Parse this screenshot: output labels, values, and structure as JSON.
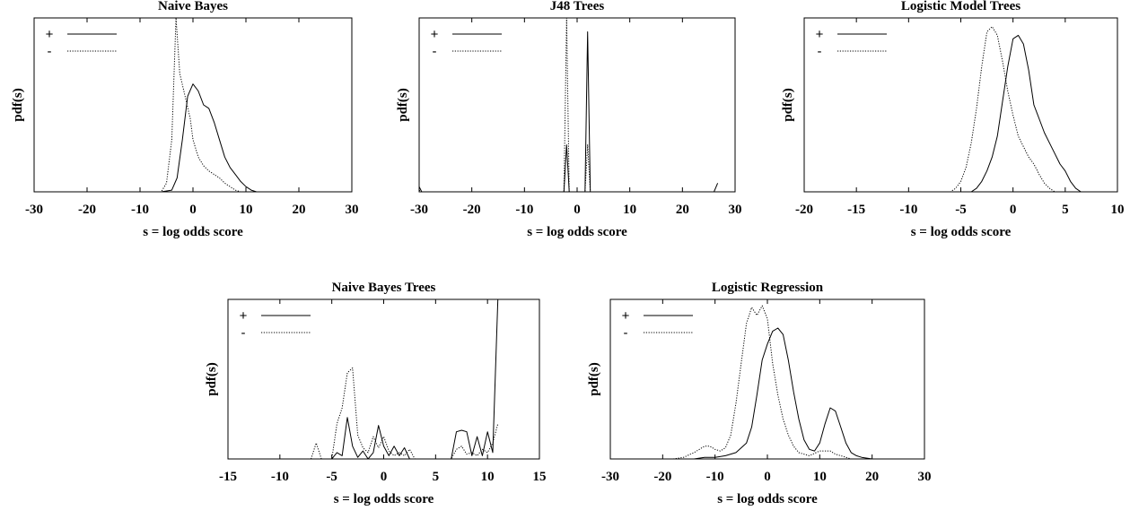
{
  "chart_data": [
    {
      "type": "line",
      "title": "Naive Bayes",
      "xlabel": "s = log odds score",
      "ylabel": "pdf(s)",
      "xlim": [
        -30,
        30
      ],
      "ylim": [
        0,
        1
      ],
      "xticks": [
        -30,
        -20,
        -10,
        0,
        10,
        20,
        30
      ],
      "legend_position": "top-left",
      "series": [
        {
          "name": "+",
          "style": "solid",
          "points": [
            [
              -30,
              0
            ],
            [
              -6,
              0
            ],
            [
              -4,
              0.01
            ],
            [
              -3,
              0.08
            ],
            [
              -2,
              0.3
            ],
            [
              -1,
              0.55
            ],
            [
              0,
              0.62
            ],
            [
              1,
              0.58
            ],
            [
              2,
              0.5
            ],
            [
              3,
              0.48
            ],
            [
              4,
              0.4
            ],
            [
              5,
              0.3
            ],
            [
              6,
              0.2
            ],
            [
              7,
              0.14
            ],
            [
              8,
              0.1
            ],
            [
              9,
              0.06
            ],
            [
              10,
              0.03
            ],
            [
              11,
              0.01
            ],
            [
              12,
              0
            ],
            [
              30,
              0
            ]
          ]
        },
        {
          "name": "-",
          "style": "dotted",
          "points": [
            [
              -30,
              0
            ],
            [
              -6,
              0
            ],
            [
              -5,
              0.05
            ],
            [
              -4,
              0.3
            ],
            [
              -3.2,
              1.0
            ],
            [
              -2.5,
              0.68
            ],
            [
              -1.5,
              0.55
            ],
            [
              -0.5,
              0.42
            ],
            [
              0,
              0.3
            ],
            [
              1,
              0.2
            ],
            [
              2,
              0.15
            ],
            [
              3,
              0.12
            ],
            [
              4,
              0.1
            ],
            [
              5,
              0.08
            ],
            [
              6,
              0.05
            ],
            [
              7,
              0.03
            ],
            [
              8,
              0.01
            ],
            [
              9,
              0
            ],
            [
              30,
              0
            ]
          ]
        }
      ]
    },
    {
      "type": "line",
      "title": "J48 Trees",
      "xlabel": "s = log odds score",
      "ylabel": "pdf(s)",
      "xlim": [
        -30,
        30
      ],
      "ylim": [
        0,
        1
      ],
      "xticks": [
        -30,
        -20,
        -10,
        0,
        10,
        20,
        30
      ],
      "legend_position": "top-left",
      "series": [
        {
          "name": "+",
          "style": "solid",
          "points": [
            [
              -30,
              0.03
            ],
            [
              -29.5,
              0
            ],
            [
              -2.5,
              0
            ],
            [
              -2,
              0.27
            ],
            [
              -1.5,
              0
            ],
            [
              1.5,
              0
            ],
            [
              2,
              0.92
            ],
            [
              2.5,
              0
            ],
            [
              26,
              0
            ],
            [
              26.7,
              0.05
            ]
          ]
        },
        {
          "name": "-",
          "style": "dotted",
          "points": [
            [
              -30,
              0.01
            ],
            [
              -29.5,
              0
            ],
            [
              -2.5,
              0
            ],
            [
              -2,
              1.0
            ],
            [
              -1.5,
              0
            ],
            [
              1.5,
              0
            ],
            [
              2,
              0.27
            ],
            [
              2.5,
              0
            ],
            [
              30,
              0
            ]
          ]
        }
      ]
    },
    {
      "type": "line",
      "title": "Logistic Model Trees",
      "xlabel": "s = log odds score",
      "ylabel": "pdf(s)",
      "xlim": [
        -20,
        10
      ],
      "ylim": [
        0,
        1
      ],
      "xticks": [
        -20,
        -15,
        -10,
        -5,
        0,
        5,
        10
      ],
      "legend_position": "top-left",
      "series": [
        {
          "name": "+",
          "style": "solid",
          "points": [
            [
              -20,
              0
            ],
            [
              -4,
              0
            ],
            [
              -3.5,
              0.02
            ],
            [
              -3,
              0.06
            ],
            [
              -2.5,
              0.12
            ],
            [
              -2,
              0.2
            ],
            [
              -1.5,
              0.32
            ],
            [
              -1,
              0.52
            ],
            [
              -0.5,
              0.72
            ],
            [
              0,
              0.88
            ],
            [
              0.5,
              0.9
            ],
            [
              1,
              0.85
            ],
            [
              1.5,
              0.7
            ],
            [
              2,
              0.5
            ],
            [
              2.5,
              0.42
            ],
            [
              3,
              0.34
            ],
            [
              3.5,
              0.28
            ],
            [
              4,
              0.22
            ],
            [
              4.5,
              0.16
            ],
            [
              5,
              0.12
            ],
            [
              5.5,
              0.06
            ],
            [
              6,
              0.02
            ],
            [
              6.5,
              0
            ],
            [
              10,
              0
            ]
          ]
        },
        {
          "name": "-",
          "style": "dotted",
          "points": [
            [
              -20,
              0
            ],
            [
              -6,
              0
            ],
            [
              -5.5,
              0.02
            ],
            [
              -5,
              0.06
            ],
            [
              -4.5,
              0.14
            ],
            [
              -4,
              0.28
            ],
            [
              -3.5,
              0.48
            ],
            [
              -3,
              0.72
            ],
            [
              -2.5,
              0.92
            ],
            [
              -2,
              0.95
            ],
            [
              -1.5,
              0.9
            ],
            [
              -1,
              0.75
            ],
            [
              -0.5,
              0.58
            ],
            [
              0,
              0.44
            ],
            [
              0.5,
              0.32
            ],
            [
              1,
              0.26
            ],
            [
              1.5,
              0.2
            ],
            [
              2,
              0.16
            ],
            [
              2.5,
              0.1
            ],
            [
              3,
              0.05
            ],
            [
              3.5,
              0.02
            ],
            [
              4,
              0
            ],
            [
              10,
              0
            ]
          ]
        }
      ]
    },
    {
      "type": "line",
      "title": "Naive Bayes Trees",
      "xlabel": "s = log odds score",
      "ylabel": "pdf(s)",
      "xlim": [
        -15,
        15
      ],
      "ylim": [
        0,
        1
      ],
      "xticks": [
        -15,
        -10,
        -5,
        0,
        5,
        10,
        15
      ],
      "legend_position": "top-left",
      "series": [
        {
          "name": "+",
          "style": "solid",
          "points": [
            [
              -15,
              0
            ],
            [
              -5,
              0
            ],
            [
              -4.5,
              0.04
            ],
            [
              -4,
              0.02
            ],
            [
              -3.5,
              0.26
            ],
            [
              -3,
              0.08
            ],
            [
              -2.5,
              0.01
            ],
            [
              -2,
              0.05
            ],
            [
              -1.5,
              0.0
            ],
            [
              -1,
              0.04
            ],
            [
              -0.5,
              0.21
            ],
            [
              0,
              0.08
            ],
            [
              0.5,
              0.02
            ],
            [
              1,
              0.08
            ],
            [
              1.5,
              0.02
            ],
            [
              2,
              0.07
            ],
            [
              2.5,
              0
            ],
            [
              6.5,
              0
            ],
            [
              7,
              0.17
            ],
            [
              7.5,
              0.18
            ],
            [
              8,
              0.17
            ],
            [
              8.5,
              0.02
            ],
            [
              9,
              0.14
            ],
            [
              9.5,
              0.02
            ],
            [
              10,
              0.17
            ],
            [
              10.5,
              0.04
            ],
            [
              11,
              1.0
            ]
          ]
        },
        {
          "name": "-",
          "style": "dotted",
          "points": [
            [
              -15,
              0
            ],
            [
              -7,
              0
            ],
            [
              -6.5,
              0.1
            ],
            [
              -6,
              0
            ],
            [
              -5,
              0
            ],
            [
              -4.5,
              0.22
            ],
            [
              -4,
              0.32
            ],
            [
              -3.5,
              0.54
            ],
            [
              -3,
              0.57
            ],
            [
              -2.5,
              0.15
            ],
            [
              -2,
              0.07
            ],
            [
              -1.5,
              0.04
            ],
            [
              -1,
              0.14
            ],
            [
              -0.5,
              0.07
            ],
            [
              0,
              0.14
            ],
            [
              0.5,
              0.05
            ],
            [
              1,
              0.02
            ],
            [
              1.5,
              0.04
            ],
            [
              2,
              0.02
            ],
            [
              2.5,
              0.06
            ],
            [
              3,
              0
            ],
            [
              6.5,
              0
            ],
            [
              7,
              0.06
            ],
            [
              7.5,
              0.08
            ],
            [
              8,
              0.03
            ],
            [
              8.5,
              0.04
            ],
            [
              9,
              0.02
            ],
            [
              9.5,
              0.06
            ],
            [
              10,
              0.04
            ],
            [
              10.5,
              0.1
            ],
            [
              11,
              0.22
            ]
          ]
        }
      ]
    },
    {
      "type": "line",
      "title": "Logistic Regression",
      "xlabel": "s = log odds score",
      "ylabel": "pdf(s)",
      "xlim": [
        -30,
        30
      ],
      "ylim": [
        0,
        1
      ],
      "xticks": [
        -30,
        -20,
        -10,
        0,
        10,
        20,
        30
      ],
      "legend_position": "top-left",
      "series": [
        {
          "name": "+",
          "style": "solid",
          "points": [
            [
              -30,
              0
            ],
            [
              -14,
              0
            ],
            [
              -12,
              0.01
            ],
            [
              -10,
              0.01
            ],
            [
              -8,
              0.02
            ],
            [
              -6,
              0.04
            ],
            [
              -4,
              0.1
            ],
            [
              -3,
              0.2
            ],
            [
              -2,
              0.4
            ],
            [
              -1,
              0.62
            ],
            [
              0,
              0.72
            ],
            [
              1,
              0.8
            ],
            [
              2,
              0.82
            ],
            [
              3,
              0.78
            ],
            [
              4,
              0.62
            ],
            [
              5,
              0.42
            ],
            [
              6,
              0.25
            ],
            [
              7,
              0.12
            ],
            [
              8,
              0.06
            ],
            [
              9,
              0.05
            ],
            [
              10,
              0.1
            ],
            [
              11,
              0.22
            ],
            [
              12,
              0.32
            ],
            [
              13,
              0.3
            ],
            [
              14,
              0.2
            ],
            [
              15,
              0.1
            ],
            [
              16,
              0.04
            ],
            [
              17,
              0.02
            ],
            [
              18,
              0.01
            ],
            [
              20,
              0
            ],
            [
              30,
              0
            ]
          ]
        },
        {
          "name": "-",
          "style": "dotted",
          "points": [
            [
              -30,
              0
            ],
            [
              -18,
              0
            ],
            [
              -16,
              0.01
            ],
            [
              -14,
              0.04
            ],
            [
              -12,
              0.08
            ],
            [
              -11,
              0.08
            ],
            [
              -10,
              0.06
            ],
            [
              -9,
              0.05
            ],
            [
              -8,
              0.07
            ],
            [
              -7,
              0.15
            ],
            [
              -6,
              0.35
            ],
            [
              -5,
              0.6
            ],
            [
              -4,
              0.85
            ],
            [
              -3,
              0.95
            ],
            [
              -2,
              0.9
            ],
            [
              -1,
              0.96
            ],
            [
              0,
              0.88
            ],
            [
              1,
              0.6
            ],
            [
              2,
              0.4
            ],
            [
              3,
              0.25
            ],
            [
              4,
              0.15
            ],
            [
              5,
              0.08
            ],
            [
              6,
              0.04
            ],
            [
              7,
              0.03
            ],
            [
              8,
              0.02
            ],
            [
              10,
              0.05
            ],
            [
              12,
              0.05
            ],
            [
              13,
              0.03
            ],
            [
              14,
              0.02
            ],
            [
              16,
              0
            ],
            [
              30,
              0
            ]
          ]
        }
      ]
    }
  ]
}
